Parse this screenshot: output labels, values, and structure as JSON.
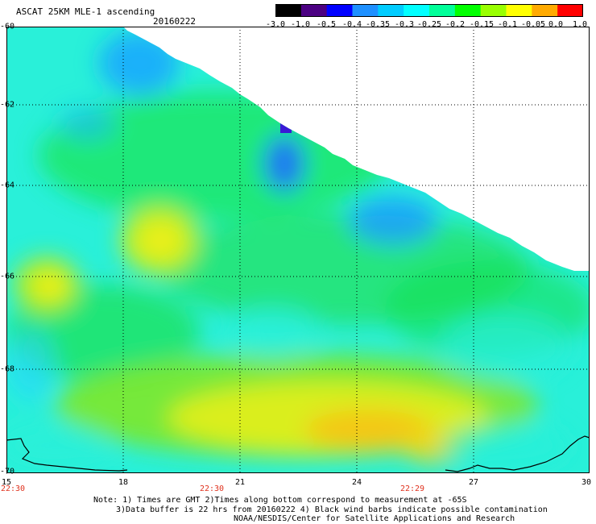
{
  "header": {
    "title": "ASCAT 25KM MLE-1 ascending",
    "date": "20160222"
  },
  "colorbar": {
    "labels": [
      "-3.0",
      "-1.0",
      "-0.5",
      "-0.4",
      "-0.35",
      "-0.3",
      "-0.25",
      "-0.2",
      "-0.15",
      "-0.1",
      "-0.05",
      "0.0",
      "1.0"
    ],
    "colors": [
      "#000000",
      "#4b0082",
      "#0000ff",
      "#1e90ff",
      "#00ccff",
      "#00ffff",
      "#00ff99",
      "#00ff00",
      "#99ff00",
      "#ffff00",
      "#ffaa00",
      "#ff0000"
    ]
  },
  "map": {
    "lat_labels": [
      "-60",
      "-62",
      "-64",
      "-66",
      "-68",
      "-70"
    ],
    "lon_labels": [
      "15",
      "18",
      "21",
      "24",
      "27",
      "30"
    ],
    "time_labels": [
      "22:30",
      "22:30",
      "22:29"
    ],
    "lat_range": [
      -70,
      -60
    ],
    "lon_range": [
      15,
      30
    ],
    "grid": true
  },
  "notes": {
    "line1": "Note: 1) Times are GMT 2)Times along bottom correspond to measurement at -65S",
    "line2": "3)Data buffer is 22 hrs from 20160222 4) Black wind barbs indicate possible contamination",
    "line3": "NOAA/NESDIS/Center for Satellite Applications and Research"
  }
}
